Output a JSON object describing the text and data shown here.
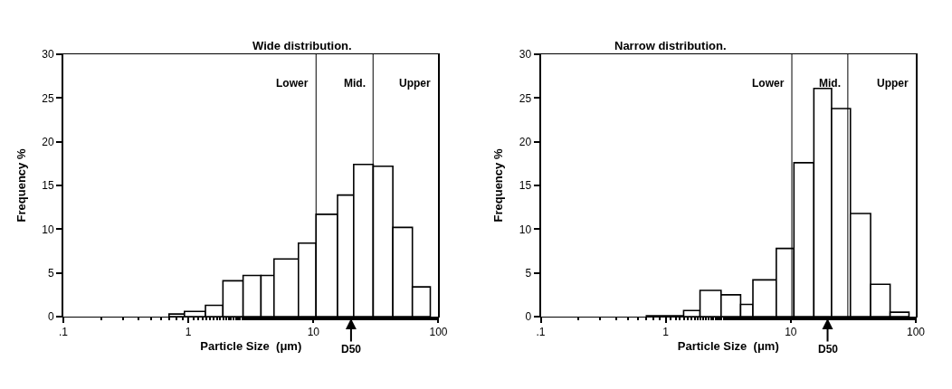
{
  "chart_data": [
    {
      "type": "histogram",
      "title": "Wide distribution.",
      "xlabel": "Particle Size  (μm)",
      "ylabel": "Frequency %",
      "log": "x",
      "bins": [
        0.7,
        0.93,
        1.37,
        1.89,
        2.74,
        3.81,
        4.84,
        7.59,
        10.5,
        15.6,
        21.0,
        30.1,
        43.2,
        61.9,
        86.1
      ],
      "values": [
        0.3,
        0.6,
        1.3,
        4.1,
        4.7,
        4.7,
        6.6,
        8.4,
        11.7,
        13.9,
        17.4,
        17.2,
        10.2,
        3.4
      ],
      "color": "#ffffff",
      "xlim": [
        0.1,
        100
      ],
      "ylim": [
        0,
        30
      ],
      "xticks": [
        {
          "value": 0.1,
          "label": ".1"
        },
        1,
        10,
        100
      ],
      "yticks": [
        0,
        5,
        10,
        15,
        20,
        25,
        30
      ],
      "ref_lines": [
        {
          "axis": "x",
          "value": 10.5
        },
        {
          "axis": "x",
          "value": 30
        }
      ],
      "annotations": [
        "Lower",
        "Mid.",
        "Upper",
        {
          "text": "D50",
          "x": 20,
          "y": 0
        }
      ]
    },
    {
      "type": "histogram",
      "title": "Narrow distribution.",
      "xlabel": "Particle Size  (μm)",
      "ylabel": "Frequency %",
      "log": "x",
      "bins": [
        0.7,
        1.39,
        1.88,
        2.77,
        3.97,
        4.98,
        7.66,
        10.6,
        15.3,
        21.2,
        30.0,
        43.5,
        62.3,
        88.2
      ],
      "values": [
        0.1,
        0.7,
        3.0,
        2.5,
        1.4,
        4.2,
        7.8,
        17.6,
        26.1,
        23.8,
        11.8,
        3.7,
        0.5
      ],
      "color": "#ffffff",
      "xlim": [
        0.1,
        100
      ],
      "ylim": [
        0,
        30
      ],
      "xticks": [
        {
          "value": 0.1,
          "label": ".1"
        },
        1,
        10,
        100
      ],
      "yticks": [
        0,
        5,
        10,
        15,
        20,
        25,
        30
      ],
      "ref_lines": [
        {
          "axis": "x",
          "value": 10.2
        },
        {
          "axis": "x",
          "value": 28.6
        }
      ],
      "annotations": [
        "Lower",
        "Mid.",
        "Upper",
        {
          "text": "D50",
          "x": 19.7,
          "y": 0
        }
      ]
    }
  ]
}
